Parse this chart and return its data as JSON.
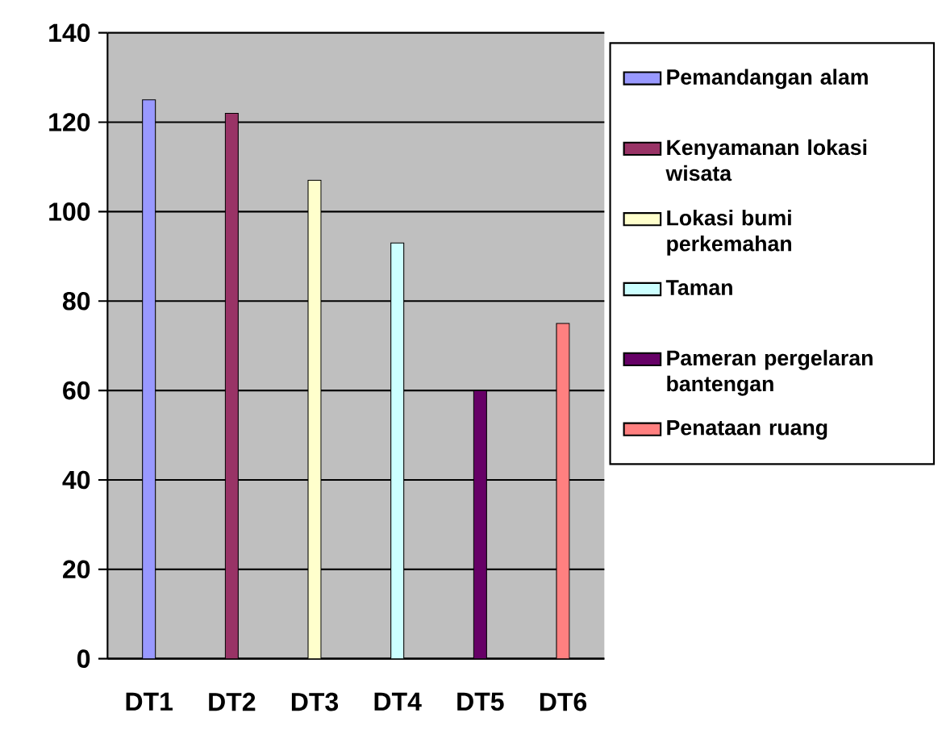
{
  "chart_data": {
    "type": "bar",
    "categories": [
      "DT1",
      "DT2",
      "DT3",
      "DT4",
      "DT5",
      "DT6"
    ],
    "series": [
      {
        "name": "Pemandangan alam",
        "color": "#9999ff",
        "values": [
          125,
          null,
          null,
          null,
          null,
          null
        ]
      },
      {
        "name": "Kenyamanan lokasi wisata",
        "color": "#993366",
        "values": [
          null,
          122,
          null,
          null,
          null,
          null
        ]
      },
      {
        "name": "Lokasi bumi perkemahan",
        "color": "#ffffcc",
        "values": [
          null,
          null,
          107,
          null,
          null,
          null
        ]
      },
      {
        "name": "Taman",
        "color": "#ccffff",
        "values": [
          null,
          null,
          null,
          93,
          null,
          null
        ]
      },
      {
        "name": "Pameran pergelaran bantengan",
        "color": "#660066",
        "values": [
          null,
          null,
          null,
          null,
          60,
          null
        ]
      },
      {
        "name": "Penataan ruang",
        "color": "#ff8080",
        "values": [
          null,
          null,
          null,
          null,
          null,
          75
        ]
      }
    ],
    "ylim": [
      0,
      140
    ],
    "yticks": [
      0,
      20,
      40,
      60,
      80,
      100,
      120,
      140
    ],
    "grid": "y",
    "legend": "right"
  }
}
